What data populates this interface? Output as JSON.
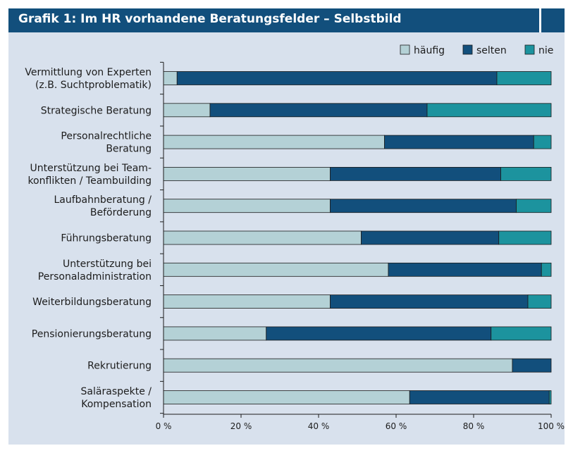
{
  "chart_data": {
    "type": "bar",
    "orientation": "horizontal",
    "stacked": true,
    "title": "Grafik 1: Im HR vorhandene Beratungsfelder – Selbstbild",
    "xlim": [
      0,
      100
    ],
    "x_ticks": [
      "0 %",
      "20 %",
      "40 %",
      "60 %",
      "80 %",
      "100 %"
    ],
    "legend_position": "top-right",
    "categories": [
      [
        "Vermittlung von Experten",
        "(z.B. Suchtproblematik)"
      ],
      [
        "Strategische Beratung"
      ],
      [
        "Personalrechtliche",
        "Beratung"
      ],
      [
        "Unterstützung bei Team-",
        "konflikten / Teambuilding"
      ],
      [
        "Laufbahnberatung /",
        "Beförderung"
      ],
      [
        "Führungsberatung"
      ],
      [
        "Unterstützung bei",
        "Personaladministration"
      ],
      [
        "Weiterbildungsberatung"
      ],
      [
        "Pensionierungsberatung"
      ],
      [
        "Rekrutierung"
      ],
      [
        "Saläraspekte /",
        "Kompensation"
      ]
    ],
    "series": [
      {
        "name": "häufig",
        "color": "#b4d1d6",
        "values": [
          3.5,
          12,
          57,
          43,
          43,
          51,
          58,
          43,
          26.5,
          90,
          63.5
        ]
      },
      {
        "name": "selten",
        "color": "#124f7c",
        "values": [
          82.5,
          56,
          38.5,
          44,
          48,
          35.5,
          39.5,
          51,
          58,
          10,
          36
        ]
      },
      {
        "name": "nie",
        "color": "#1c939e",
        "values": [
          14,
          32,
          4.5,
          13,
          9,
          13.5,
          2.5,
          6,
          15.5,
          0,
          0.5
        ]
      }
    ]
  }
}
